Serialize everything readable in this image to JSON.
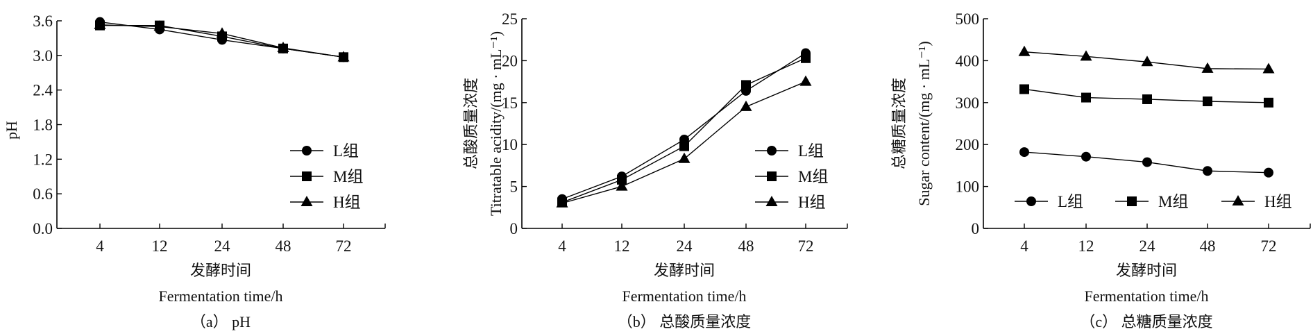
{
  "chart_data": [
    {
      "type": "line",
      "panel": "a",
      "caption": "（a） pH",
      "xlabel_cn": "发酵时间",
      "xlabel": "Fermentation time/h",
      "ylabel_cn": "",
      "ylabel": "pH",
      "categories": [
        "4",
        "12",
        "24",
        "48",
        "72"
      ],
      "ylim": [
        0,
        3.6
      ],
      "yticks": [
        "0.0",
        "0.6",
        "1.2",
        "1.8",
        "2.4",
        "3.0",
        "3.6"
      ],
      "legend_position": "center-right",
      "series": [
        {
          "name": "L组",
          "marker": "circle",
          "values": [
            3.58,
            3.45,
            3.27,
            3.12,
            2.97
          ]
        },
        {
          "name": "M组",
          "marker": "square",
          "values": [
            3.52,
            3.52,
            3.33,
            3.12,
            2.97
          ]
        },
        {
          "name": "H组",
          "marker": "triangle",
          "values": [
            3.53,
            3.5,
            3.38,
            3.13,
            2.97
          ]
        }
      ]
    },
    {
      "type": "line",
      "panel": "b",
      "caption": "（b） 总酸质量浓度",
      "xlabel_cn": "发酵时间",
      "xlabel": "Fermentation time/h",
      "ylabel_cn": "总酸质量浓度",
      "ylabel": "Titratable acidity/(mg · mL⁻¹)",
      "categories": [
        "4",
        "12",
        "24",
        "48",
        "72"
      ],
      "ylim": [
        0,
        25
      ],
      "yticks": [
        "0",
        "5",
        "10",
        "15",
        "20",
        "25"
      ],
      "legend_position": "center-right",
      "series": [
        {
          "name": "L组",
          "marker": "circle",
          "values": [
            3.5,
            6.2,
            10.6,
            16.4,
            20.9
          ]
        },
        {
          "name": "M组",
          "marker": "square",
          "values": [
            3.1,
            5.8,
            9.8,
            17.1,
            20.3
          ]
        },
        {
          "name": "H组",
          "marker": "triangle",
          "values": [
            3.0,
            5.0,
            8.3,
            14.5,
            17.5
          ]
        }
      ]
    },
    {
      "type": "line",
      "panel": "c",
      "caption": "（c） 总糖质量浓度",
      "xlabel_cn": "发酵时间",
      "xlabel": "Fermentation time/h",
      "ylabel_cn": "总糖质量浓度",
      "ylabel": "Sugar content/(mg · mL⁻¹)",
      "categories": [
        "4",
        "12",
        "24",
        "48",
        "72"
      ],
      "ylim": [
        0,
        500
      ],
      "yticks": [
        "0",
        "100",
        "200",
        "300",
        "400",
        "500"
      ],
      "legend_position": "bottom-horizontal",
      "series": [
        {
          "name": "L组",
          "marker": "circle",
          "values": [
            182,
            171,
            158,
            137,
            133
          ]
        },
        {
          "name": "M组",
          "marker": "square",
          "values": [
            332,
            312,
            308,
            303,
            300
          ]
        },
        {
          "name": "H组",
          "marker": "triangle",
          "values": [
            421,
            410,
            397,
            381,
            380
          ]
        }
      ]
    }
  ]
}
